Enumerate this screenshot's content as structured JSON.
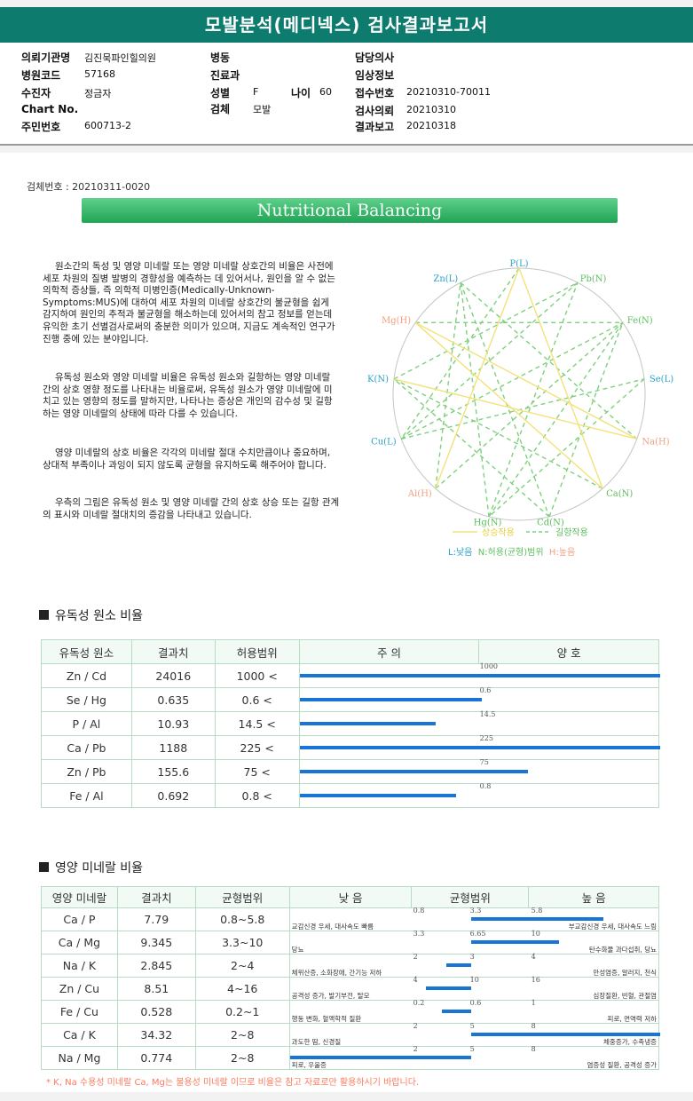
{
  "title": "모발분석(메디넥스) 검사결과보고서",
  "header": {
    "req_org_label": "의뢰기관명",
    "req_org": "김진묵파인힐의원",
    "ward_label": "병동",
    "doctor_label": "담당의사",
    "hosp_code_label": "병원코드",
    "hosp_code": "57168",
    "dept_label": "진료과",
    "clinical_label": "임상정보",
    "patient_label": "수진자",
    "patient": "정금자",
    "sex_label": "성별",
    "sex": "F",
    "age_label": "나이",
    "age": "60",
    "receipt_label": "접수번호",
    "receipt": "20210310-70011",
    "chart_label": "Chart No.",
    "specimen_label": "검체",
    "specimen": "모발",
    "test_req_label": "검사의뢰",
    "test_req": "20210310",
    "rrn_label": "주민번호",
    "rrn": "600713-2",
    "report_label": "결과보고",
    "report": "20210318"
  },
  "specimen_no": "검체번호 : 20210311-0020",
  "banner": "Nutritional Balancing",
  "paragraphs": [
    "원소간의 독성 및 영양 미네랄 또는 영양 미네랄 상호간의 비율은 사전에 세포 차원의 질병 발병의 경향성을 예측하는 데 있어서나, 원인을 알 수 없는 의학적 증상들, 즉 의학적 미병인증(Medically-Unknown-Symptoms:MUS)에 대하여 세포 차원의 미네랄 상호간의 불균형을 쉽게 감지하여 원인의 추적과 불균형을 해소하는데 있어서의 참고 정보를 얻는데 유익한 초기 선별검사로써의 충분한 의미가 있으며, 지금도 계속적인 연구가 진행 중에 있는 분야입니다.",
    "유독성 원소와 영양 미네랄 비율은 유독성 원소와 길항하는 영양 미네랄 간의 상호 영향 정도를 나타내는 비율로써, 유독성 원소가 영양 미네랄에 미치고 있는 영향의 정도를 말하지만, 나타나는 증상은 개인의 감수성 및 길항하는 영양 미네랄의 상태에 따라 다를 수 있습니다.",
    "영양 미네랄의 상호 비율은 각각의 미네랄 절대 수치만큼이나 중요하며, 상대적 부족이나 과잉이 되지 않도록 균형을 유지하도록 해주어야 합니다.",
    "우측의 그림은 유독성 원소 및 영양 미네랄 간의 상호 상승 또는 길항 관계의 표시와 미네랄 절대치의 증감을 나타내고 있습니다."
  ],
  "wheel": {
    "nodes": [
      {
        "label": "P(L)",
        "color": "#2aa3c9"
      },
      {
        "label": "Pb(N)",
        "color": "#5cbf5c"
      },
      {
        "label": "Fe(N)",
        "color": "#5cbf5c"
      },
      {
        "label": "Se(L)",
        "color": "#2aa3c9"
      },
      {
        "label": "Na(H)",
        "color": "#f0a080"
      },
      {
        "label": "Ca(N)",
        "color": "#5cbf5c"
      },
      {
        "label": "Cd(N)",
        "color": "#5cbf5c"
      },
      {
        "label": "Hg(N)",
        "color": "#5cbf5c"
      },
      {
        "label": "Al(H)",
        "color": "#f0a080"
      },
      {
        "label": "Cu(L)",
        "color": "#2aa3c9"
      },
      {
        "label": "K(N)",
        "color": "#2aa3c9"
      },
      {
        "label": "Mg(H)",
        "color": "#f0a080"
      },
      {
        "label": "Zn(L)",
        "color": "#2aa3c9"
      }
    ],
    "legend_synergy": "상승작용",
    "legend_antagonism": "길항작용",
    "legend_low": "L:낮음",
    "legend_normal": "N:허용(균형)범위",
    "legend_high": "H:높음",
    "colors": {
      "synergy": "#f2e27a",
      "antagonism": "#7fd07f",
      "circle": "#bbbbbb"
    }
  },
  "toxic": {
    "section_title": "유독성 원소 비율",
    "headers": [
      "유독성 원소",
      "결과치",
      "허용범위",
      "주      의",
      "양      호"
    ],
    "rows": [
      {
        "name": "Zn / Cd",
        "value": "24016",
        "range": "1000 <",
        "tick": "1000",
        "fill": 1.0
      },
      {
        "name": "Se / Hg",
        "value": "0.635",
        "range": "0.6 <",
        "tick": "0.6",
        "fill": 0.505
      },
      {
        "name": "P / Al",
        "value": "10.93",
        "range": "14.5 <",
        "tick": "14.5",
        "fill": 0.377
      },
      {
        "name": "Ca / Pb",
        "value": "1188",
        "range": "225 <",
        "tick": "225",
        "fill": 1.0
      },
      {
        "name": "Zn / Pb",
        "value": "155.6",
        "range": "75 <",
        "tick": "75",
        "fill": 0.635
      },
      {
        "name": "Fe / Al",
        "value": "0.692",
        "range": "0.8 <",
        "tick": "0.8",
        "fill": 0.435
      }
    ]
  },
  "nutri": {
    "section_title": "영양 미네랄 비율",
    "headers": [
      "영양 미네랄",
      "결과치",
      "균형범위",
      "낮      음",
      "균형범위",
      "높      음"
    ],
    "rows": [
      {
        "name": "Ca / P",
        "value": "7.79",
        "range": "0.8~5.8",
        "lo": "0.8",
        "mid": "3.3",
        "hi": "5.8",
        "low_note": "교감신경 우세, 대사속도 빠름",
        "high_note": "부교감신경 우세, 대사속도 느림",
        "bar_from": 0.5,
        "bar_to": 0.85
      },
      {
        "name": "Ca / Mg",
        "value": "9.345",
        "range": "3.3~10",
        "lo": "3.3",
        "mid": "6.65",
        "hi": "10",
        "low_note": "당뇨",
        "high_note": "탄수화물 과다섭취, 당뇨",
        "bar_from": 0.5,
        "bar_to": 0.733
      },
      {
        "name": "Na / K",
        "value": "2.845",
        "range": "2~4",
        "lo": "2",
        "mid": "3",
        "hi": "4",
        "low_note": "체위산증, 소화장애, 간기능 저하",
        "high_note": "만성염증, 알러지, 천식",
        "bar_from": 0.43,
        "bar_to": 0.5
      },
      {
        "name": "Zn / Cu",
        "value": "8.51",
        "range": "4~16",
        "lo": "4",
        "mid": "10",
        "hi": "16",
        "low_note": "공격성 증가, 발기부전, 탈모",
        "high_note": "심장질환, 빈혈, 관절염",
        "bar_from": 0.375,
        "bar_to": 0.5
      },
      {
        "name": "Fe / Cu",
        "value": "0.528",
        "range": "0.2~1",
        "lo": "0.2",
        "mid": "0.6",
        "hi": "1",
        "low_note": "행동 변화, 혈액학적 질환",
        "high_note": "피로, 면역력 저하",
        "bar_from": 0.42,
        "bar_to": 0.5
      },
      {
        "name": "Ca / K",
        "value": "34.32",
        "range": "2~8",
        "lo": "2",
        "mid": "5",
        "hi": "8",
        "low_note": "과도한 땀, 신경질",
        "high_note": "체중증가, 수족냉증",
        "bar_from": 0.5,
        "bar_to": 1.0
      },
      {
        "name": "Na / Mg",
        "value": "0.774",
        "range": "2~8",
        "lo": "2",
        "mid": "5",
        "hi": "8",
        "low_note": "피로, 우울증",
        "high_note": "염증성 질환, 공격성 증가",
        "bar_from": 0.0,
        "bar_to": 0.5
      }
    ]
  },
  "footnote": "* K, Na 수용성 미네랄 Ca, Mg는 불용성 미네랄 이므로 비율은 참고 자료로만 활용하시기 바랍니다."
}
